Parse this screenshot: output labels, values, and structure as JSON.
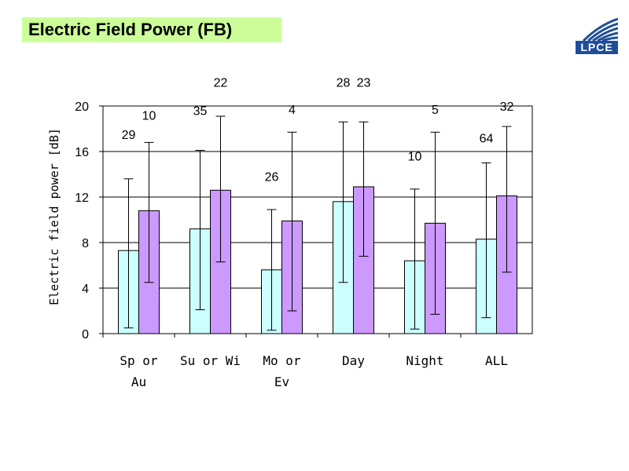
{
  "title": "Electric Field Power (FB)",
  "logo": {
    "text": "LPCE",
    "color": "#1f4e99"
  },
  "chart_data": {
    "type": "bar",
    "title": "Electric Field Power (FB)",
    "ylabel": "Electric field power [dB]",
    "xlabel": "",
    "ylim": [
      0,
      20
    ],
    "yticks": [
      0,
      4,
      8,
      12,
      16,
      20
    ],
    "grid": true,
    "categories": [
      [
        "Sp or",
        "Au"
      ],
      [
        "Su or Wi"
      ],
      [
        "Mo or",
        "Ev"
      ],
      [
        "Day"
      ],
      [
        "Night"
      ],
      [
        "ALL"
      ]
    ],
    "series": [
      {
        "color": "#ccffff",
        "values": [
          7.3,
          9.2,
          5.6,
          11.6,
          6.4,
          8.3
        ],
        "err_low": [
          0.5,
          2.1,
          0.3,
          4.5,
          0.4,
          1.4
        ],
        "err_high": [
          13.6,
          16.1,
          10.9,
          18.6,
          12.7,
          15.0
        ],
        "labels": [
          "29",
          "35",
          "26",
          "28",
          "10",
          "64"
        ],
        "label_y": [
          17.1,
          19.2,
          13.4,
          21.7,
          15.2,
          16.8
        ]
      },
      {
        "color": "#cc99ff",
        "values": [
          10.8,
          12.6,
          9.9,
          12.9,
          9.7,
          12.1
        ],
        "err_low": [
          4.5,
          6.3,
          2.0,
          6.8,
          1.7,
          5.4
        ],
        "err_high": [
          16.8,
          19.1,
          17.7,
          18.6,
          17.7,
          18.2
        ],
        "labels": [
          "10",
          "22",
          "4",
          "23",
          "5",
          "32"
        ],
        "label_y": [
          18.8,
          21.7,
          19.3,
          21.7,
          19.3,
          19.6
        ]
      }
    ]
  }
}
